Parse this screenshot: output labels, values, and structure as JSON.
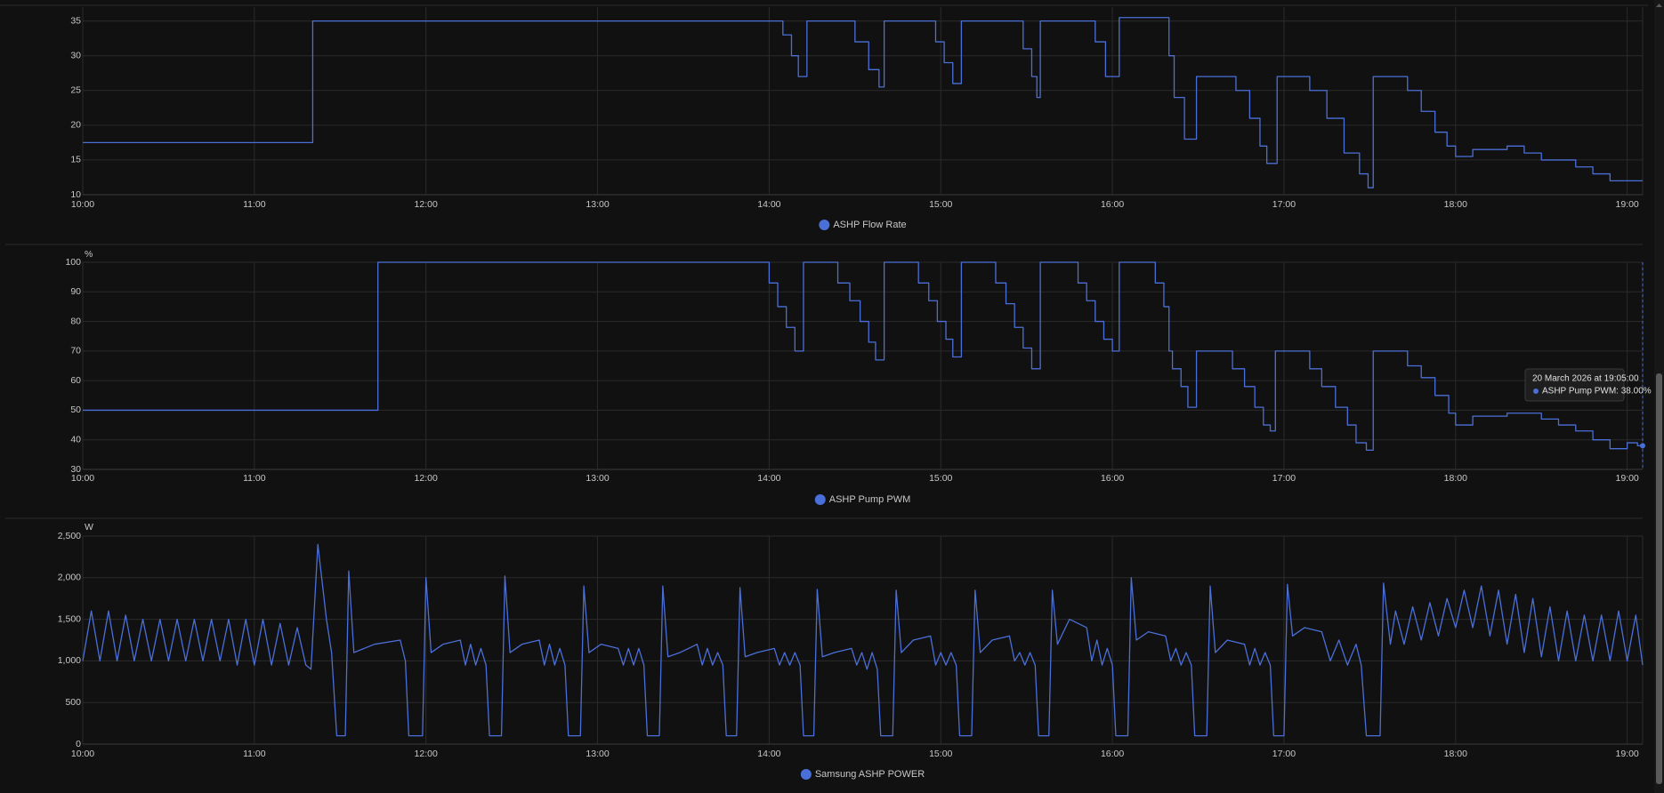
{
  "chart_data": [
    {
      "type": "line",
      "x": [
        10,
        11.34,
        11.34,
        14.08,
        14.08,
        14.13,
        14.13,
        14.17,
        14.17,
        14.22,
        14.22,
        14.5,
        14.5,
        14.58,
        14.58,
        14.64,
        14.64,
        14.67,
        14.67,
        14.97,
        14.97,
        15.02,
        15.02,
        15.07,
        15.07,
        15.12,
        15.12,
        15.48,
        15.48,
        15.53,
        15.53,
        15.56,
        15.56,
        15.58,
        15.58,
        15.9,
        15.9,
        15.96,
        15.96,
        16.04,
        16.04,
        16.33,
        16.33,
        16.36,
        16.36,
        16.42,
        16.42,
        16.49,
        16.49,
        16.72,
        16.72,
        16.8,
        16.8,
        16.86,
        16.86,
        16.9,
        16.9,
        16.96,
        16.96,
        17.15,
        17.15,
        17.25,
        17.25,
        17.35,
        17.35,
        17.44,
        17.44,
        17.49,
        17.49,
        17.52,
        17.52,
        17.72,
        17.72,
        17.8,
        17.8,
        17.88,
        17.88,
        17.95,
        17.95,
        18,
        18,
        18.1,
        18.1,
        18.3,
        18.3,
        18.4,
        18.4,
        18.5,
        18.5,
        18.7,
        18.7,
        18.8,
        18.8,
        18.9,
        18.9,
        19.09
      ],
      "series": [
        {
          "name": "ASHP Flow Rate",
          "color": "#4b6fd8",
          "values": [
            17.5,
            17.5,
            35,
            35,
            33,
            33,
            30,
            30,
            27,
            27,
            35,
            35,
            32,
            32,
            28,
            28,
            25.5,
            25.5,
            35,
            35,
            32,
            32,
            29,
            29,
            26,
            26,
            35,
            35,
            31,
            31,
            27,
            27,
            24,
            24,
            35,
            35,
            32,
            32,
            27,
            27,
            35.5,
            35.5,
            30,
            30,
            24,
            24,
            18,
            18,
            27,
            27,
            25,
            25,
            21,
            21,
            17,
            17,
            14.5,
            14.5,
            27,
            27,
            25,
            25,
            21,
            21,
            16,
            16,
            13,
            13,
            11,
            11,
            27,
            27,
            25,
            25,
            22,
            22,
            19,
            19,
            17,
            17,
            15.5,
            15.5,
            16.5,
            16.5,
            17,
            17,
            16,
            16,
            15,
            15,
            14,
            14,
            13,
            13,
            12,
            12
          ]
        }
      ],
      "xlim": [
        10,
        19.09
      ],
      "xticks": [
        {
          "value": 10,
          "label": "10:00"
        },
        {
          "value": 11,
          "label": "11:00"
        },
        {
          "value": 12,
          "label": "12:00"
        },
        {
          "value": 13,
          "label": "13:00"
        },
        {
          "value": 14,
          "label": "14:00"
        },
        {
          "value": 15,
          "label": "15:00"
        },
        {
          "value": 16,
          "label": "16:00"
        },
        {
          "value": 17,
          "label": "17:00"
        },
        {
          "value": 18,
          "label": "18:00"
        },
        {
          "value": 19,
          "label": "19:00"
        }
      ],
      "ylim": [
        10,
        37
      ],
      "yticks": [
        10,
        15,
        20,
        25,
        30,
        35
      ],
      "grid": true
    },
    {
      "type": "line",
      "y_label": "%",
      "x": [
        10,
        11.72,
        11.72,
        14,
        14,
        14.05,
        14.05,
        14.1,
        14.1,
        14.15,
        14.15,
        14.2,
        14.2,
        14.4,
        14.4,
        14.47,
        14.47,
        14.53,
        14.53,
        14.58,
        14.58,
        14.62,
        14.62,
        14.67,
        14.67,
        14.87,
        14.87,
        14.93,
        14.93,
        14.98,
        14.98,
        15.03,
        15.03,
        15.07,
        15.07,
        15.12,
        15.12,
        15.32,
        15.32,
        15.38,
        15.38,
        15.43,
        15.43,
        15.48,
        15.48,
        15.53,
        15.53,
        15.58,
        15.58,
        15.8,
        15.8,
        15.85,
        15.85,
        15.9,
        15.9,
        15.95,
        15.95,
        16,
        16,
        16.04,
        16.04,
        16.25,
        16.25,
        16.3,
        16.3,
        16.33,
        16.33,
        16.35,
        16.35,
        16.4,
        16.4,
        16.44,
        16.44,
        16.49,
        16.49,
        16.7,
        16.7,
        16.77,
        16.77,
        16.83,
        16.83,
        16.88,
        16.88,
        16.92,
        16.92,
        16.95,
        16.95,
        17.15,
        17.15,
        17.22,
        17.22,
        17.3,
        17.3,
        17.37,
        17.37,
        17.42,
        17.42,
        17.48,
        17.48,
        17.52,
        17.52,
        17.72,
        17.72,
        17.8,
        17.8,
        17.88,
        17.88,
        17.96,
        17.96,
        18,
        18,
        18.1,
        18.1,
        18.3,
        18.3,
        18.5,
        18.5,
        18.6,
        18.6,
        18.7,
        18.7,
        18.8,
        18.8,
        18.9,
        18.9,
        19,
        19,
        19.06,
        19.06,
        19.09
      ],
      "series": [
        {
          "name": "ASHP Pump PWM",
          "color": "#4b6fd8",
          "values": [
            50,
            50,
            100,
            100,
            93,
            93,
            85,
            85,
            78,
            78,
            70,
            70,
            100,
            100,
            93,
            93,
            87,
            87,
            80,
            80,
            73,
            73,
            67,
            67,
            100,
            100,
            93,
            93,
            87,
            87,
            80,
            80,
            74,
            74,
            68,
            68,
            100,
            100,
            93,
            93,
            86,
            86,
            78,
            78,
            71,
            71,
            64,
            64,
            100,
            100,
            93,
            93,
            87,
            87,
            80,
            80,
            74,
            74,
            70,
            70,
            100,
            100,
            93,
            93,
            85,
            85,
            70,
            70,
            64,
            64,
            58,
            58,
            51,
            51,
            70,
            70,
            64,
            64,
            58,
            58,
            51,
            51,
            45,
            45,
            43,
            43,
            70,
            70,
            64,
            64,
            58,
            58,
            51,
            51,
            45,
            45,
            39,
            39,
            36.5,
            36.5,
            70,
            70,
            65,
            65,
            61,
            61,
            55,
            55,
            49,
            49,
            45,
            45,
            48,
            48,
            49,
            49,
            47,
            47,
            45,
            45,
            43,
            43,
            40,
            40,
            37,
            37,
            39,
            39,
            38,
            38
          ]
        }
      ],
      "xlim": [
        10,
        19.09
      ],
      "xticks": [
        {
          "value": 10,
          "label": "10:00"
        },
        {
          "value": 11,
          "label": "11:00"
        },
        {
          "value": 12,
          "label": "12:00"
        },
        {
          "value": 13,
          "label": "13:00"
        },
        {
          "value": 14,
          "label": "14:00"
        },
        {
          "value": 15,
          "label": "15:00"
        },
        {
          "value": 16,
          "label": "16:00"
        },
        {
          "value": 17,
          "label": "17:00"
        },
        {
          "value": 18,
          "label": "18:00"
        },
        {
          "value": 19,
          "label": "19:00"
        }
      ],
      "ylim": [
        30,
        100
      ],
      "yticks": [
        30,
        40,
        50,
        60,
        70,
        80,
        90,
        100
      ],
      "grid": true,
      "tooltip": {
        "title": "20 March 2026 at 19:05:00",
        "text": "ASHP Pump PWM: 38.00%"
      }
    },
    {
      "type": "line",
      "y_label": "W",
      "x": [
        10,
        10.05,
        10.1,
        10.15,
        10.2,
        10.25,
        10.3,
        10.35,
        10.4,
        10.45,
        10.5,
        10.55,
        10.6,
        10.65,
        10.7,
        10.75,
        10.8,
        10.85,
        10.9,
        10.95,
        11,
        11.05,
        11.1,
        11.15,
        11.2,
        11.25,
        11.3,
        11.33,
        11.37,
        11.42,
        11.45,
        11.48,
        11.53,
        11.55,
        11.58,
        11.7,
        11.85,
        11.88,
        11.9,
        11.98,
        12,
        12.03,
        12.1,
        12.2,
        12.23,
        12.26,
        12.29,
        12.32,
        12.35,
        12.37,
        12.44,
        12.46,
        12.49,
        12.56,
        12.66,
        12.69,
        12.72,
        12.75,
        12.78,
        12.81,
        12.83,
        12.9,
        12.92,
        12.95,
        13.02,
        13.12,
        13.15,
        13.18,
        13.21,
        13.24,
        13.27,
        13.29,
        13.36,
        13.38,
        13.41,
        13.48,
        13.58,
        13.61,
        13.64,
        13.67,
        13.7,
        13.73,
        13.75,
        13.81,
        13.83,
        13.86,
        13.93,
        14.03,
        14.06,
        14.09,
        14.12,
        14.15,
        14.18,
        14.2,
        14.26,
        14.28,
        14.31,
        14.38,
        14.48,
        14.51,
        14.54,
        14.57,
        14.6,
        14.63,
        14.65,
        14.72,
        14.74,
        14.77,
        14.84,
        14.94,
        14.97,
        15,
        15.03,
        15.06,
        15.09,
        15.11,
        15.18,
        15.2,
        15.23,
        15.3,
        15.4,
        15.43,
        15.46,
        15.49,
        15.52,
        15.55,
        15.57,
        15.63,
        15.65,
        15.68,
        15.75,
        15.85,
        15.88,
        15.91,
        15.94,
        15.97,
        16,
        16.02,
        16.09,
        16.11,
        16.14,
        16.21,
        16.31,
        16.34,
        16.37,
        16.4,
        16.43,
        16.46,
        16.48,
        16.55,
        16.57,
        16.6,
        16.67,
        16.77,
        16.8,
        16.83,
        16.86,
        16.89,
        16.92,
        16.94,
        17,
        17.02,
        17.05,
        17.12,
        17.22,
        17.27,
        17.32,
        17.37,
        17.42,
        17.45,
        17.48,
        17.56,
        17.58,
        17.62,
        17.65,
        17.7,
        17.75,
        17.8,
        17.85,
        17.9,
        17.95,
        18,
        18.05,
        18.1,
        18.15,
        18.2,
        18.25,
        18.3,
        18.35,
        18.4,
        18.45,
        18.5,
        18.55,
        18.6,
        18.65,
        18.7,
        18.75,
        18.8,
        18.85,
        18.9,
        18.95,
        19,
        19.05,
        19.09
      ],
      "series": [
        {
          "name": "Samsung ASHP POWER",
          "color": "#4b6fd8",
          "values": [
            1000,
            1600,
            1000,
            1600,
            1000,
            1550,
            1000,
            1500,
            1000,
            1500,
            1000,
            1500,
            1000,
            1500,
            1000,
            1500,
            1000,
            1500,
            950,
            1500,
            950,
            1500,
            950,
            1450,
            950,
            1400,
            950,
            900,
            2400,
            1500,
            1100,
            100,
            100,
            2080,
            1100,
            1200,
            1250,
            1000,
            100,
            100,
            2000,
            1100,
            1200,
            1250,
            950,
            1200,
            950,
            1150,
            950,
            100,
            100,
            2020,
            1100,
            1200,
            1250,
            950,
            1200,
            950,
            1150,
            950,
            100,
            100,
            1900,
            1100,
            1200,
            1150,
            950,
            1150,
            950,
            1150,
            950,
            100,
            100,
            1900,
            1050,
            1100,
            1200,
            950,
            1150,
            950,
            1100,
            950,
            100,
            100,
            1880,
            1050,
            1100,
            1150,
            950,
            1100,
            950,
            1100,
            950,
            100,
            100,
            1860,
            1050,
            1100,
            1150,
            950,
            1100,
            900,
            1100,
            900,
            100,
            100,
            1850,
            1100,
            1250,
            1300,
            950,
            1100,
            950,
            1100,
            950,
            100,
            100,
            1850,
            1100,
            1250,
            1300,
            1000,
            1100,
            950,
            1100,
            950,
            100,
            100,
            1850,
            1200,
            1500,
            1400,
            1000,
            1250,
            950,
            1150,
            950,
            100,
            100,
            2000,
            1250,
            1350,
            1300,
            1000,
            1150,
            950,
            1100,
            950,
            100,
            100,
            1900,
            1100,
            1250,
            1200,
            950,
            1150,
            950,
            1100,
            950,
            100,
            100,
            1920,
            1300,
            1400,
            1350,
            1000,
            1250,
            950,
            1200,
            950,
            100,
            100,
            1935,
            1200,
            1600,
            1200,
            1650,
            1250,
            1700,
            1300,
            1750,
            1400,
            1850,
            1400,
            1900,
            1300,
            1850,
            1200,
            1800,
            1100,
            1750,
            1050,
            1650,
            1000,
            1600,
            1000,
            1550,
            1000,
            1550,
            1000,
            1600,
            1000,
            1550,
            950
          ]
        }
      ],
      "xlim": [
        10,
        19.09
      ],
      "xticks": [
        {
          "value": 10,
          "label": "10:00"
        },
        {
          "value": 11,
          "label": "11:00"
        },
        {
          "value": 12,
          "label": "12:00"
        },
        {
          "value": 13,
          "label": "13:00"
        },
        {
          "value": 14,
          "label": "14:00"
        },
        {
          "value": 15,
          "label": "15:00"
        },
        {
          "value": 16,
          "label": "16:00"
        },
        {
          "value": 17,
          "label": "17:00"
        },
        {
          "value": 18,
          "label": "18:00"
        },
        {
          "value": 19,
          "label": "19:00"
        }
      ],
      "ylim": [
        0,
        2500
      ],
      "yticks": [
        0,
        500,
        {
          "value": 1000,
          "label": "1,000"
        },
        {
          "value": 1500,
          "label": "1,500"
        },
        {
          "value": 2000,
          "label": "2,000"
        },
        {
          "value": 2500,
          "label": "2,500"
        }
      ],
      "grid": true
    }
  ]
}
